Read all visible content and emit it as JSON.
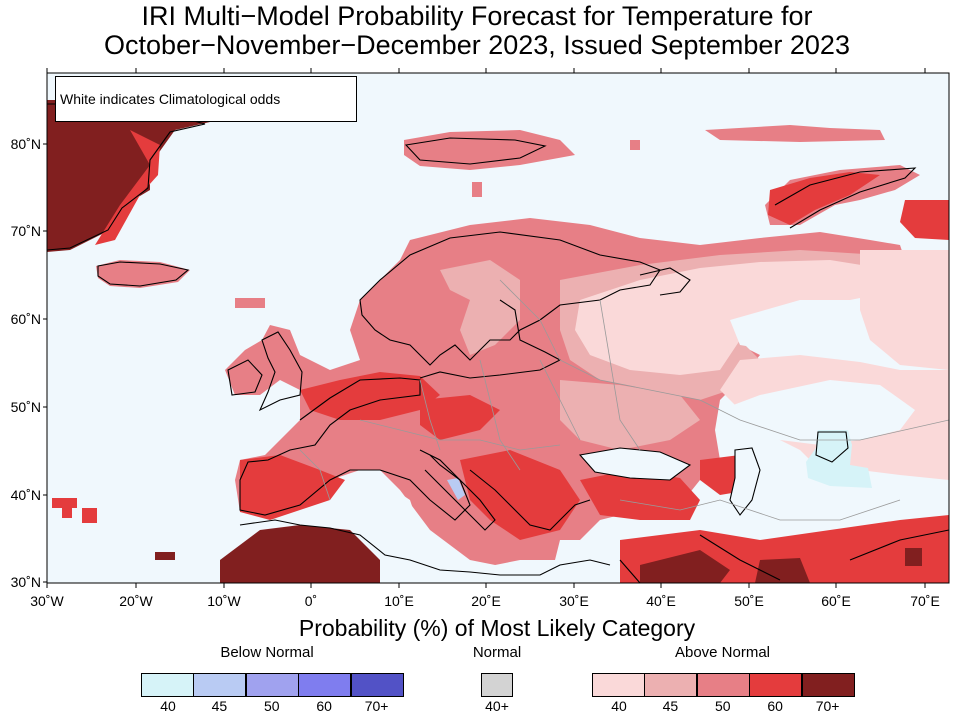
{
  "title_line1": "IRI Multi−Model Probability Forecast for Temperature for",
  "title_line2": "October−November−December 2023, Issued September 2023",
  "note": "White indicates Climatological odds",
  "lat_labels": [
    "80˚N",
    "70˚N",
    "60˚N",
    "50˚N",
    "40˚N",
    "30˚N"
  ],
  "lon_labels": [
    "30˚W",
    "20˚W",
    "10˚W",
    "0˚",
    "10˚E",
    "20˚E",
    "30˚E",
    "40˚E",
    "50˚E",
    "60˚E",
    "70˚E"
  ],
  "legend": {
    "title": "Probability (%) of Most Likely Category",
    "below_label": "Below Normal",
    "normal_label": "Normal",
    "above_label": "Above Normal",
    "below_colors": [
      "#d6f3f8",
      "#b9cbf3",
      "#a0a2ef",
      "#7f7def",
      "#5252c6"
    ],
    "below_values": [
      "40",
      "45",
      "50",
      "60",
      "70+"
    ],
    "normal_color": "#d3d3d3",
    "normal_value": "40+",
    "above_colors": [
      "#fad9d9",
      "#ecb0b1",
      "#e77f86",
      "#e43c3d",
      "#811f1f"
    ],
    "above_values": [
      "40",
      "45",
      "50",
      "60",
      "70+"
    ]
  },
  "colors": {
    "ocean": "#f0f8fd",
    "border": "#9a9a9a",
    "coast": "#000000"
  }
}
